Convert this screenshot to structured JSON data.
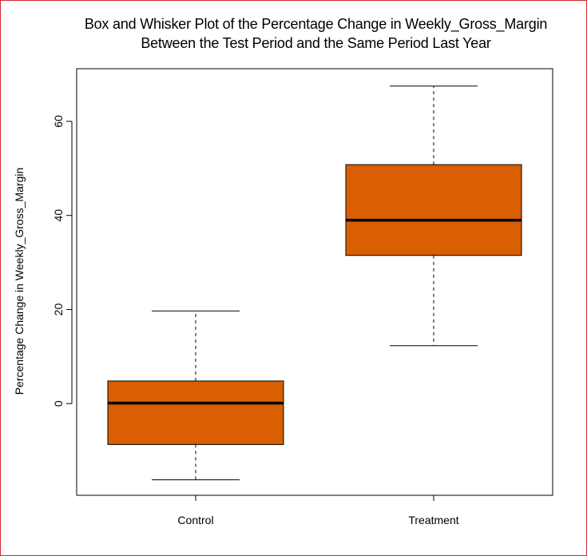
{
  "chart_data": {
    "type": "box",
    "title": "Box and Whisker Plot of the Percentage Change in Weekly_Gross_Margin",
    "subtitle": "Between the Test Period and the Same Period Last Year",
    "xlabel": "",
    "ylabel": "Percentage Change in Weekly_Gross_Margin",
    "ylim": [
      -19.5,
      71.2
    ],
    "yticks": [
      0,
      20,
      40,
      60
    ],
    "grid": false,
    "legend": "none",
    "box_color": "#d95f02",
    "categories": [
      "Control",
      "Treatment"
    ],
    "boxes": [
      {
        "name": "Control",
        "min": -16.2,
        "q1": -8.7,
        "median": 0.1,
        "q3": 4.8,
        "max": 19.7
      },
      {
        "name": "Treatment",
        "min": 12.3,
        "q1": 31.5,
        "median": 39.0,
        "q3": 50.8,
        "max": 67.5
      }
    ]
  }
}
